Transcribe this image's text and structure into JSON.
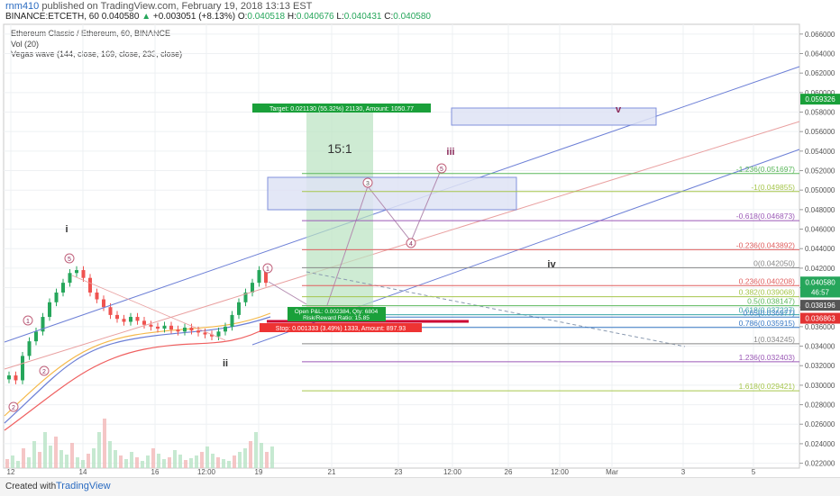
{
  "header": {
    "user": "rnm410",
    "published": "published on TradingView.com, February 19, 2018 13:13 EST",
    "symbol_line_prefix": "BINANCE:ETCETH, 60 0.040580",
    "change": "+0.003051 (+8.13%)",
    "ohlc_prefix": "O:",
    "open": "0.040518",
    "high_prefix": "H:",
    "high": "0.040676",
    "low_prefix": "L:",
    "low": "0.040431",
    "close_prefix": "C:",
    "close": "0.040580"
  },
  "legend": {
    "title": "Ethereum Classic / Ethereum, 60, BINANCE",
    "vol": "Vol (20)",
    "vegas": "Vegas wave (144, close, 169, close, 233, close)"
  },
  "footer": {
    "created": "Created with",
    "brand": "TradingView"
  },
  "colors": {
    "up": "#26a65b",
    "down": "#ef5350",
    "channel": "#6c7fd6",
    "fib_red": "#e06060",
    "target_green": "#1aa03a",
    "stop_red": "#e33",
    "box_fill": "#dfe3f5"
  },
  "chart_data": {
    "type": "line",
    "title": "Ethereum Classic / Ethereum, 60, BINANCE",
    "ylim": [
      0.0215,
      0.067
    ],
    "y_ticks": [
      "0.066000",
      "0.064000",
      "0.062000",
      "0.060000",
      "0.058000",
      "0.056000",
      "0.054000",
      "0.052000",
      "0.050000",
      "0.048000",
      "0.046000",
      "0.044000",
      "0.042000",
      "0.040000",
      "0.038000",
      "0.036000",
      "0.034000",
      "0.032000",
      "0.030000",
      "0.028000",
      "0.026000",
      "0.024000",
      "0.022000"
    ],
    "x_ticks": [
      "12",
      "14",
      "16",
      "12:00",
      "19",
      "21",
      "23",
      "12:00",
      "26",
      "12:00",
      "Mar",
      "3",
      "5"
    ],
    "price_badges": [
      {
        "label": "0.059326",
        "value": 0.059326,
        "color": "#1aa03a"
      },
      {
        "label": "0.040580",
        "value": 0.04058,
        "color": "#26a65b"
      },
      {
        "label": "46:57",
        "value": 0.03955,
        "color": "#26a65b"
      },
      {
        "label": "0.038196",
        "value": 0.038196,
        "color": "#555555"
      },
      {
        "label": "0.036863",
        "value": 0.036863,
        "color": "#e33333"
      }
    ],
    "fib_levels": [
      {
        "label": "-1.236(0.051697)",
        "value": 0.051697,
        "color": "#5cb85c"
      },
      {
        "label": "-1(0.049855)",
        "value": 0.049855,
        "color": "#a6c64c"
      },
      {
        "label": "-0.618(0.046873)",
        "value": 0.046873,
        "color": "#9b59b6"
      },
      {
        "label": "-0.236(0.043892)",
        "value": 0.043892,
        "color": "#e06060"
      },
      {
        "label": "0(0.042050)",
        "value": 0.04205,
        "color": "#888888"
      },
      {
        "label": "0.236(0.040208)",
        "value": 0.040208,
        "color": "#e06060"
      },
      {
        "label": "0.382(0.039068)",
        "value": 0.039068,
        "color": "#a6c64c"
      },
      {
        "label": "0.5(0.038147)",
        "value": 0.038147,
        "color": "#5cb85c"
      },
      {
        "label": "0.618(0.037227)",
        "value": 0.037227,
        "color": "#3aa6a6"
      },
      {
        "label": "0.65(0.036977)",
        "value": 0.036977,
        "color": "#3a7ac6"
      },
      {
        "label": "0.786(0.035915)",
        "value": 0.035915,
        "color": "#3a7ac6"
      },
      {
        "label": "1(0.034245)",
        "value": 0.034245,
        "color": "#888888"
      },
      {
        "label": "1.236(0.032403)",
        "value": 0.032403,
        "color": "#9b59b6"
      },
      {
        "label": "1.618(0.029421)",
        "value": 0.029421,
        "color": "#a6c64c"
      }
    ],
    "wave_labels": [
      "i",
      "ii",
      "iii",
      "iv",
      "v"
    ],
    "circled_labels": [
      "1",
      "2",
      "3",
      "4",
      "5"
    ],
    "ratio": "15:1",
    "target_label": "Target: 0.021130 (55.32%) 21130, Amount: 1050.77",
    "pnl_label": "Open P&L: 0.002384, Qty: 6804",
    "rr_label": "Risk/Reward Ratio: 15.85",
    "stop_label": "Stop: 0.001333 (3.49%) 1333, Amount: 897.93"
  }
}
